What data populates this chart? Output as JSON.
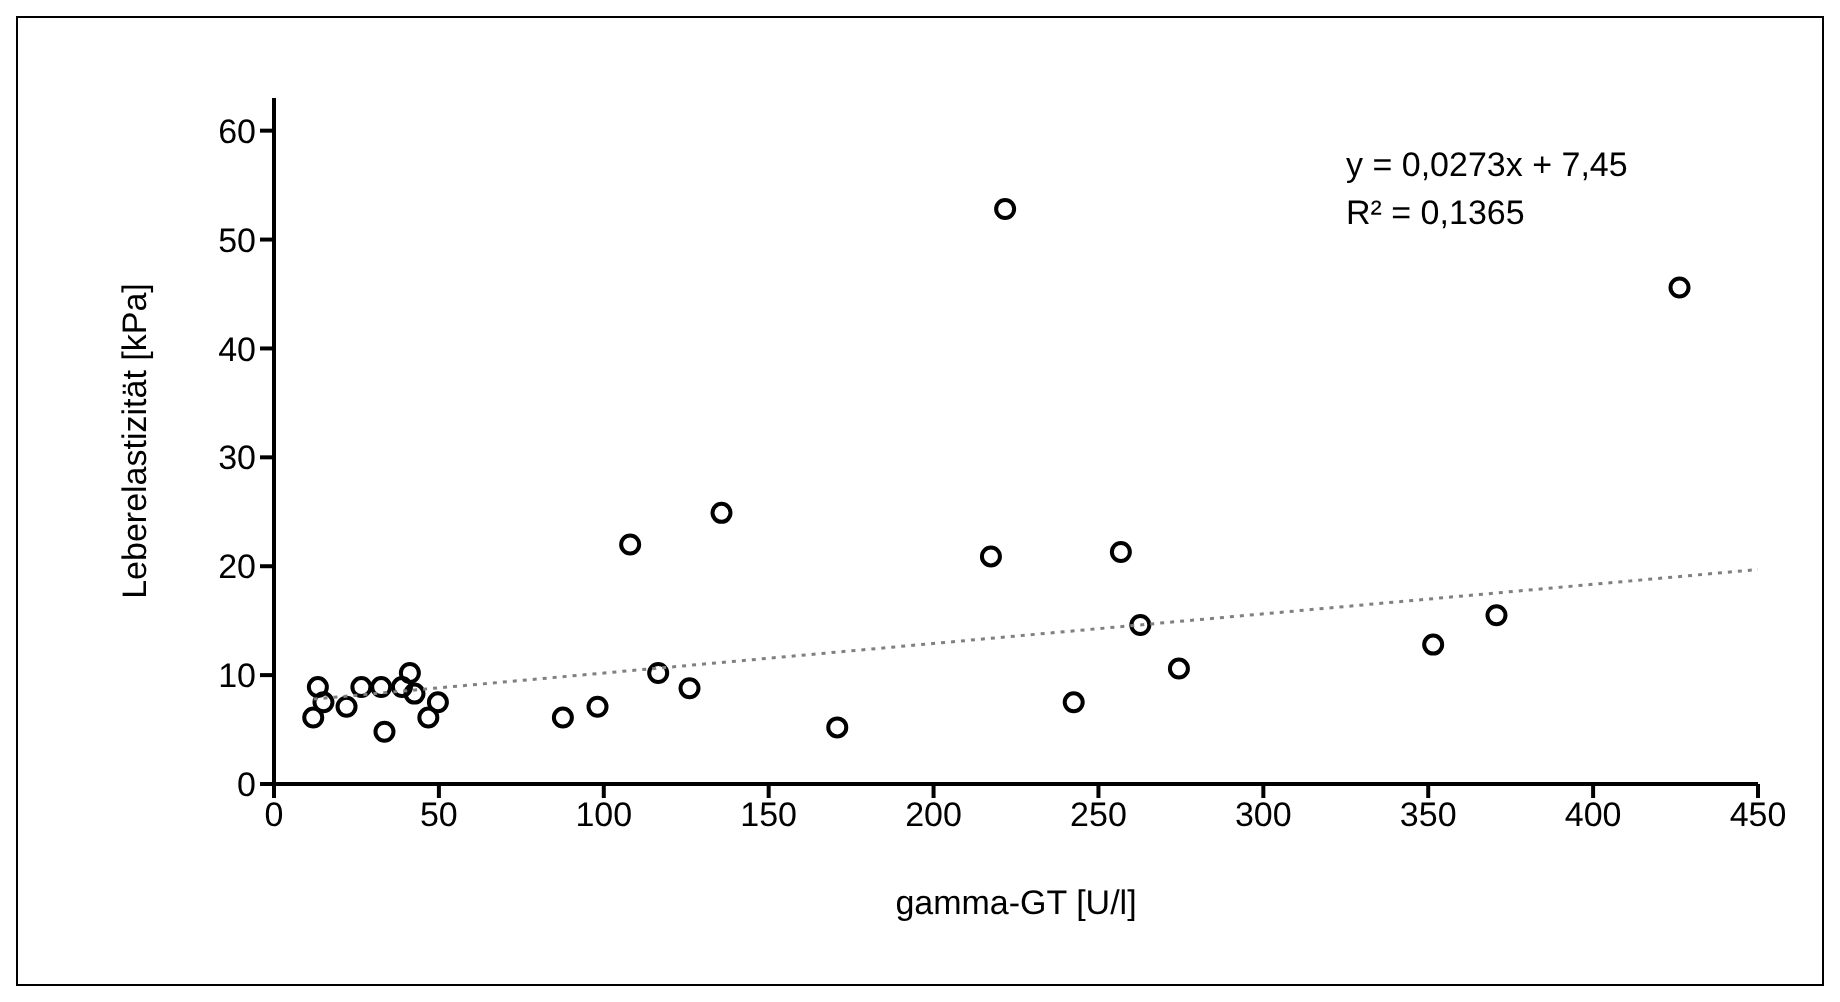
{
  "chart_data": {
    "type": "scatter",
    "xlabel": "gamma-GT [U/l]",
    "ylabel": "Leberelastizität [kPa]",
    "x": [
      11.9,
      13.3,
      15,
      22,
      26.5,
      32.5,
      33.5,
      38.8,
      41.2,
      42.6,
      46.8,
      49.7,
      87.6,
      98.1,
      108,
      116.5,
      126,
      135.7,
      170.8,
      217.4,
      221.7,
      242.5,
      256.8,
      262.7,
      274.4,
      351.5,
      370.7,
      426.2
    ],
    "series": [
      {
        "color": "#000000",
        "marker": "circle",
        "values": [
          6.1,
          8.9,
          7.5,
          7.1,
          8.9,
          8.9,
          4.8,
          8.9,
          10.2,
          8.3,
          6.1,
          7.5,
          6.1,
          7.1,
          22,
          10.2,
          8.8,
          24.9,
          5.2,
          20.9,
          52.8,
          7.5,
          21.3,
          14.6,
          10.6,
          12.8,
          15.5,
          45.6
        ]
      },
      {
        "type": "line",
        "color": "#808080",
        "line_style": "dotted",
        "marker": "none",
        "x": [
          12,
          450
        ],
        "values": [
          7.8,
          19.7
        ]
      }
    ],
    "xlim": [
      0,
      450
    ],
    "xticks": [
      0,
      50,
      100,
      150,
      200,
      250,
      300,
      350,
      400,
      450
    ],
    "ylim": [
      0,
      63
    ],
    "yticks": [
      0,
      10,
      20,
      30,
      40,
      50,
      60
    ],
    "grid": false,
    "legend": false,
    "annotations": [
      "y = 0,0273x + 7,45",
      "R² = 0,1365"
    ]
  }
}
